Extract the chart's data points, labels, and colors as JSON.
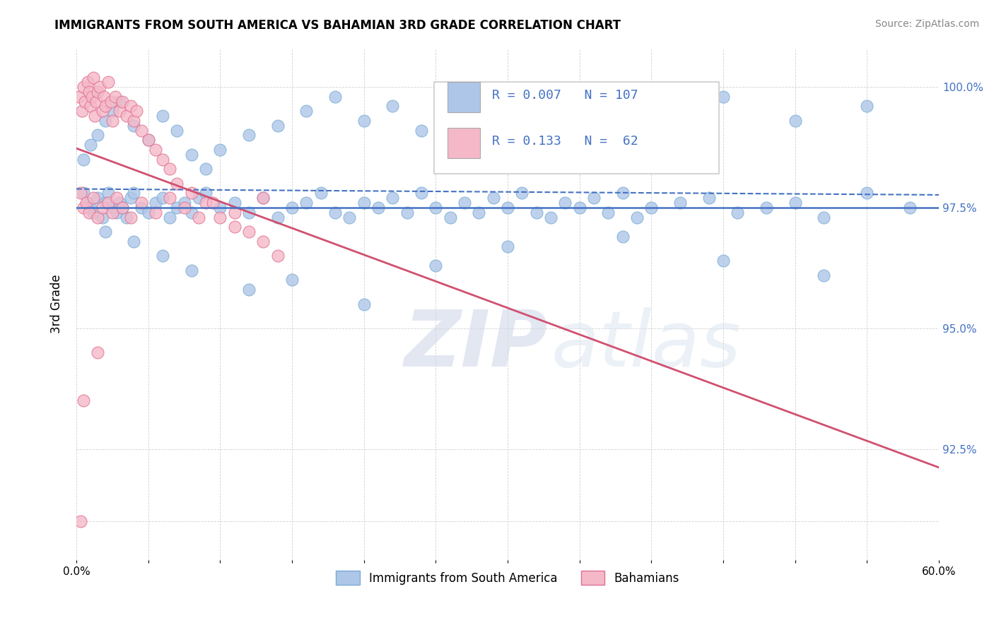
{
  "title": "IMMIGRANTS FROM SOUTH AMERICA VS BAHAMIAN 3RD GRADE CORRELATION CHART",
  "source": "Source: ZipAtlas.com",
  "ylabel": "3rd Grade",
  "xmin": 0.0,
  "xmax": 0.6,
  "ymin": 90.2,
  "ymax": 100.8,
  "ytick_vals": [
    91.0,
    92.5,
    95.0,
    97.5,
    100.0
  ],
  "ytick_labels": [
    "",
    "92.5%",
    "95.0%",
    "97.5%",
    "100.0%"
  ],
  "legend_r_blue": "R = 0.007",
  "legend_n_blue": "N = 107",
  "legend_r_pink": "R = 0.133",
  "legend_n_pink": "N =  62",
  "watermark_zip": "ZIP",
  "watermark_atlas": "atlas",
  "blue_color": "#aec6e8",
  "blue_edge": "#7aadd4",
  "pink_color": "#f5b8c8",
  "pink_edge": "#e07090",
  "trendline_blue_color": "#4472c4",
  "trendline_pink_color": "#d05070",
  "hline_color": "#4472c4",
  "hline_y": 97.5,
  "legend_text_color": "#4472c4",
  "blue_scatter_x": [
    0.005,
    0.008,
    0.01,
    0.012,
    0.015,
    0.018,
    0.02,
    0.022,
    0.025,
    0.028,
    0.03,
    0.032,
    0.035,
    0.038,
    0.04,
    0.045,
    0.05,
    0.055,
    0.06,
    0.065,
    0.07,
    0.075,
    0.08,
    0.085,
    0.09,
    0.1,
    0.11,
    0.12,
    0.13,
    0.14,
    0.15,
    0.16,
    0.17,
    0.18,
    0.19,
    0.2,
    0.21,
    0.22,
    0.23,
    0.24,
    0.25,
    0.26,
    0.27,
    0.28,
    0.29,
    0.3,
    0.31,
    0.32,
    0.33,
    0.34,
    0.35,
    0.36,
    0.37,
    0.38,
    0.39,
    0.4,
    0.42,
    0.44,
    0.46,
    0.48,
    0.5,
    0.52,
    0.55,
    0.58,
    0.005,
    0.01,
    0.015,
    0.02,
    0.025,
    0.03,
    0.04,
    0.05,
    0.06,
    0.07,
    0.08,
    0.09,
    0.1,
    0.12,
    0.14,
    0.16,
    0.18,
    0.2,
    0.22,
    0.24,
    0.26,
    0.28,
    0.3,
    0.35,
    0.4,
    0.45,
    0.5,
    0.55,
    0.02,
    0.04,
    0.06,
    0.08,
    0.12,
    0.15,
    0.2,
    0.25,
    0.3,
    0.38,
    0.45,
    0.52
  ],
  "blue_scatter_y": [
    97.8,
    97.6,
    97.5,
    97.4,
    97.7,
    97.3,
    97.6,
    97.8,
    97.5,
    97.4,
    97.6,
    97.5,
    97.3,
    97.7,
    97.8,
    97.5,
    97.4,
    97.6,
    97.7,
    97.3,
    97.5,
    97.6,
    97.4,
    97.7,
    97.8,
    97.5,
    97.6,
    97.4,
    97.7,
    97.3,
    97.5,
    97.6,
    97.8,
    97.4,
    97.3,
    97.6,
    97.5,
    97.7,
    97.4,
    97.8,
    97.5,
    97.3,
    97.6,
    97.4,
    97.7,
    97.5,
    97.8,
    97.4,
    97.3,
    97.6,
    97.5,
    97.7,
    97.4,
    97.8,
    97.3,
    97.5,
    97.6,
    97.7,
    97.4,
    97.5,
    97.6,
    97.3,
    97.8,
    97.5,
    98.5,
    98.8,
    99.0,
    99.3,
    99.5,
    99.7,
    99.2,
    98.9,
    99.4,
    99.1,
    98.6,
    98.3,
    98.7,
    99.0,
    99.2,
    99.5,
    99.8,
    99.3,
    99.6,
    99.1,
    98.8,
    99.0,
    99.4,
    99.2,
    99.5,
    99.8,
    99.3,
    99.6,
    97.0,
    96.8,
    96.5,
    96.2,
    95.8,
    96.0,
    95.5,
    96.3,
    96.7,
    96.9,
    96.4,
    96.1
  ],
  "pink_scatter_x": [
    0.002,
    0.004,
    0.005,
    0.006,
    0.008,
    0.009,
    0.01,
    0.011,
    0.012,
    0.013,
    0.014,
    0.015,
    0.016,
    0.018,
    0.019,
    0.02,
    0.022,
    0.024,
    0.025,
    0.027,
    0.03,
    0.032,
    0.035,
    0.038,
    0.04,
    0.042,
    0.045,
    0.05,
    0.055,
    0.06,
    0.065,
    0.07,
    0.08,
    0.09,
    0.1,
    0.11,
    0.12,
    0.13,
    0.14,
    0.003,
    0.005,
    0.007,
    0.009,
    0.012,
    0.015,
    0.018,
    0.022,
    0.025,
    0.028,
    0.032,
    0.038,
    0.045,
    0.055,
    0.065,
    0.075,
    0.085,
    0.095,
    0.11,
    0.13,
    0.003,
    0.005,
    0.015
  ],
  "pink_scatter_y": [
    99.8,
    99.5,
    100.0,
    99.7,
    100.1,
    99.9,
    99.6,
    99.8,
    100.2,
    99.4,
    99.7,
    99.9,
    100.0,
    99.5,
    99.8,
    99.6,
    100.1,
    99.7,
    99.3,
    99.8,
    99.5,
    99.7,
    99.4,
    99.6,
    99.3,
    99.5,
    99.1,
    98.9,
    98.7,
    98.5,
    98.3,
    98.0,
    97.8,
    97.6,
    97.3,
    97.1,
    97.0,
    96.8,
    96.5,
    97.8,
    97.5,
    97.6,
    97.4,
    97.7,
    97.3,
    97.5,
    97.6,
    97.4,
    97.7,
    97.5,
    97.3,
    97.6,
    97.4,
    97.7,
    97.5,
    97.3,
    97.6,
    97.4,
    97.7,
    91.0,
    93.5,
    94.5
  ]
}
